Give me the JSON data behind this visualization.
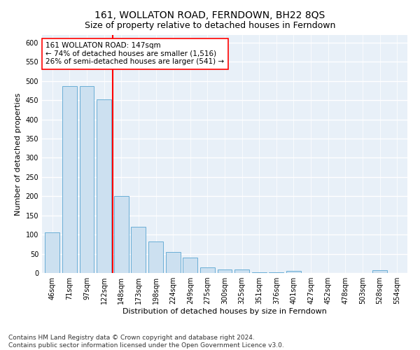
{
  "title": "161, WOLLATON ROAD, FERNDOWN, BH22 8QS",
  "subtitle": "Size of property relative to detached houses in Ferndown",
  "xlabel": "Distribution of detached houses by size in Ferndown",
  "ylabel": "Number of detached properties",
  "categories": [
    "46sqm",
    "71sqm",
    "97sqm",
    "122sqm",
    "148sqm",
    "173sqm",
    "198sqm",
    "224sqm",
    "249sqm",
    "275sqm",
    "300sqm",
    "325sqm",
    "351sqm",
    "376sqm",
    "401sqm",
    "427sqm",
    "452sqm",
    "478sqm",
    "503sqm",
    "528sqm",
    "554sqm"
  ],
  "values": [
    105,
    487,
    487,
    452,
    200,
    120,
    82,
    55,
    40,
    15,
    10,
    10,
    2,
    2,
    5,
    0,
    0,
    0,
    0,
    7,
    0
  ],
  "bar_color": "#cce0f0",
  "bar_edge_color": "#6aaed6",
  "vline_color": "red",
  "annotation_text": "161 WOLLATON ROAD: 147sqm\n← 74% of detached houses are smaller (1,516)\n26% of semi-detached houses are larger (541) →",
  "annotation_box_color": "white",
  "annotation_box_edge_color": "red",
  "ylim": [
    0,
    620
  ],
  "yticks": [
    0,
    50,
    100,
    150,
    200,
    250,
    300,
    350,
    400,
    450,
    500,
    550,
    600
  ],
  "footnote": "Contains HM Land Registry data © Crown copyright and database right 2024.\nContains public sector information licensed under the Open Government Licence v3.0.",
  "background_color": "#e8f0f8",
  "grid_color": "white",
  "title_fontsize": 10,
  "label_fontsize": 8,
  "tick_fontsize": 7,
  "footnote_fontsize": 6.5
}
